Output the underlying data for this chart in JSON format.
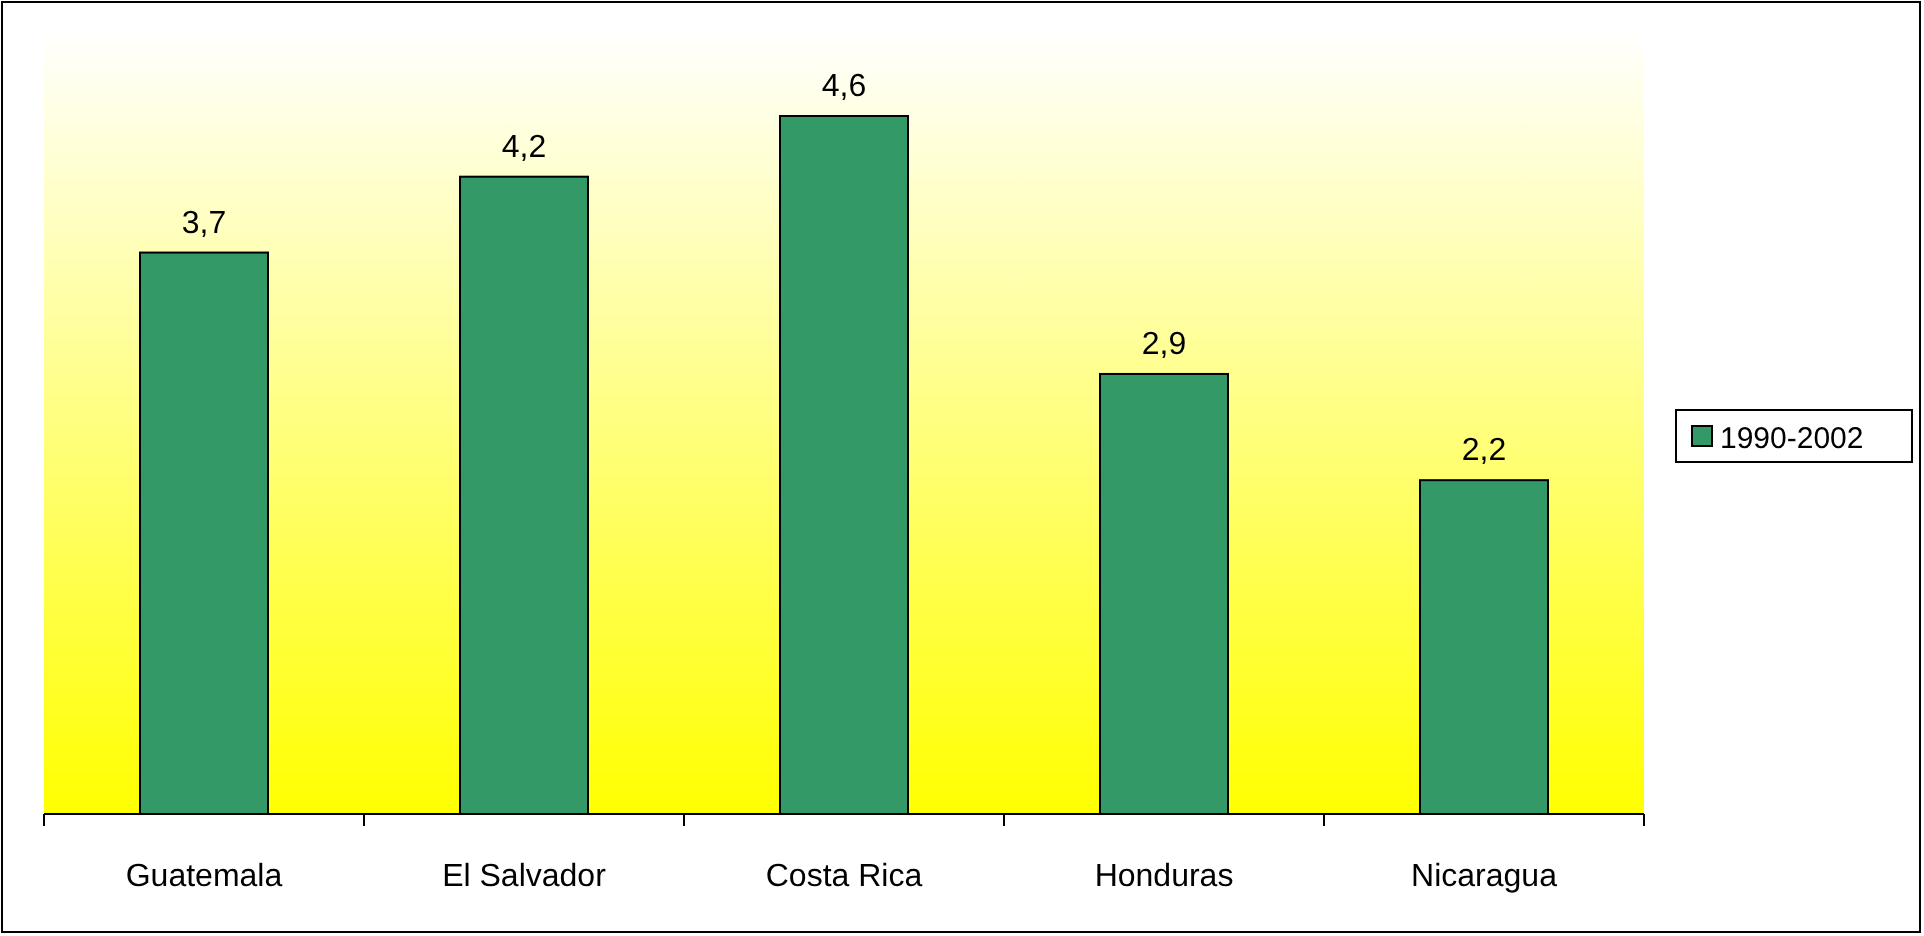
{
  "chart_data": {
    "type": "bar",
    "categories": [
      "Guatemala",
      "El Salvador",
      "Costa Rica",
      "Honduras",
      "Nicaragua"
    ],
    "series": [
      {
        "name": "1990-2002",
        "color": "#339966",
        "values": [
          3.7,
          4.2,
          4.6,
          2.9,
          2.2
        ],
        "value_labels": [
          "3,7",
          "4,2",
          "4,6",
          "2,9",
          "2,2"
        ]
      }
    ],
    "legend": "right"
  }
}
